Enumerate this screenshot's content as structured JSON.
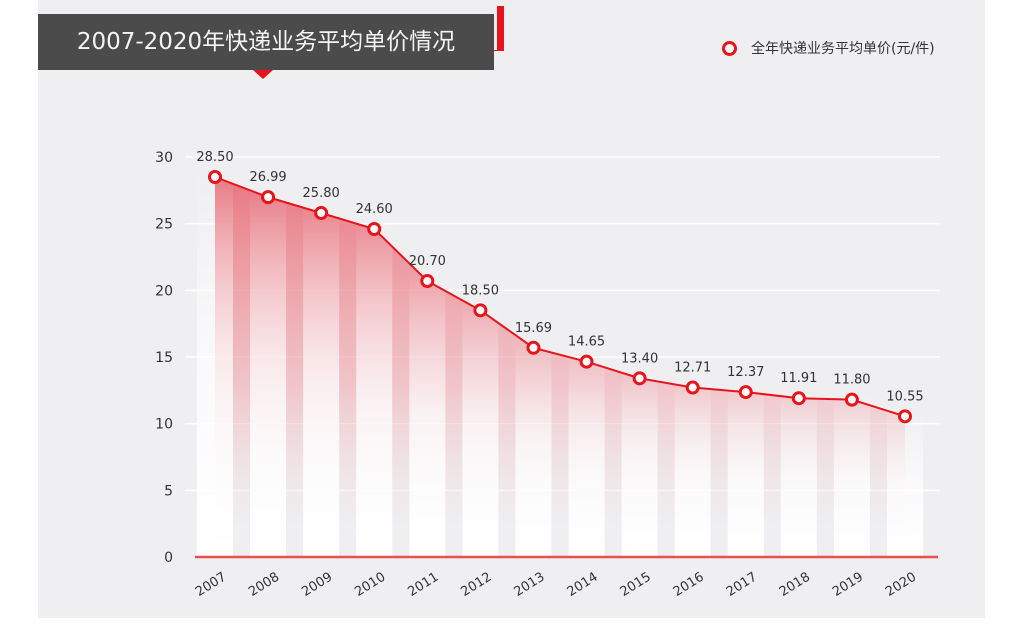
{
  "chart_data": {
    "type": "line",
    "title": "2007-2020年快递业务平均单价情况",
    "legend": {
      "entries": [
        "全年快递业务平均单价(元/件)"
      ],
      "placement": "top-right"
    },
    "categories": [
      "2007",
      "2008",
      "2009",
      "2010",
      "2011",
      "2012",
      "2013",
      "2014",
      "2015",
      "2016",
      "2017",
      "2018",
      "2019",
      "2020"
    ],
    "series": [
      {
        "name": "全年快递业务平均单价(元/件)",
        "values": [
          28.5,
          26.99,
          25.8,
          24.6,
          20.7,
          18.5,
          15.69,
          14.65,
          13.4,
          12.71,
          12.37,
          11.91,
          11.8,
          10.55
        ]
      }
    ],
    "data_labels": [
      "28.50",
      "26.99",
      "25.80",
      "24.60",
      "20.70",
      "18.50",
      "15.69",
      "14.65",
      "13.40",
      "12.71",
      "12.37",
      "11.91",
      "11.80",
      "10.55"
    ],
    "yticks": [
      "0",
      "5",
      "10",
      "15",
      "20",
      "25",
      "30"
    ],
    "ylim": [
      0,
      30
    ],
    "grid": true,
    "colors": {
      "line": "#e8141c",
      "fill": "#e8707a",
      "title_bg": "#4b4b4b",
      "panel": "#efeff1"
    }
  }
}
